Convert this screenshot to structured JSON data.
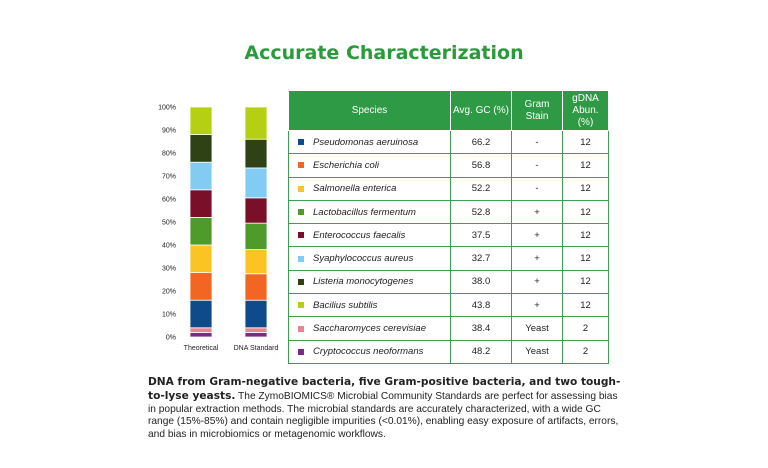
{
  "title": "Accurate Characterization",
  "chart_data": {
    "type": "bar",
    "stacked": true,
    "categories": [
      "Theoretical",
      "DNA Standard"
    ],
    "yticks": [
      "0%",
      "10%",
      "20%",
      "30%",
      "40%",
      "50%",
      "60%",
      "70%",
      "80%",
      "90%",
      "100%"
    ],
    "ylim": [
      0,
      100
    ],
    "series": [
      {
        "name": "Cryptococcus neoformans",
        "color": "#7b2c82",
        "values": [
          2,
          2
        ]
      },
      {
        "name": "Saccharomyces cerevisiae",
        "color": "#e8858e",
        "values": [
          2,
          2
        ]
      },
      {
        "name": "Pseudomonas aeruinosa",
        "color": "#0f4a8a",
        "values": [
          12,
          12
        ]
      },
      {
        "name": "Escherichia coli",
        "color": "#f26522",
        "values": [
          12,
          11.5
        ]
      },
      {
        "name": "Salmonella enterica",
        "color": "#fbc423",
        "values": [
          12,
          10.5
        ]
      },
      {
        "name": "Lactobacillus fermentum",
        "color": "#4e9a2b",
        "values": [
          12,
          11.5
        ]
      },
      {
        "name": "Enterococcus faecalis",
        "color": "#7a0f2a",
        "values": [
          12,
          11
        ]
      },
      {
        "name": "Syaphylococcus aureus",
        "color": "#82cbf2",
        "values": [
          12,
          13
        ]
      },
      {
        "name": "Listeria monocytogenes",
        "color": "#2f4216",
        "values": [
          12,
          12.5
        ]
      },
      {
        "name": "Bacilius subtilis",
        "color": "#b5d012",
        "values": [
          12,
          14
        ]
      }
    ]
  },
  "table": {
    "headers": [
      "Species",
      "Avg. GC (%)",
      "Gram Stain",
      "gDNA Abun. (%)"
    ],
    "rows": [
      {
        "species": "Pseudomonas aeruinosa",
        "color": "#0f4a8a",
        "gc": "66.2",
        "stain": "-",
        "abun": "12"
      },
      {
        "species": "Escherichia coli",
        "color": "#f26522",
        "gc": "56.8",
        "stain": "-",
        "abun": "12"
      },
      {
        "species": "Salmonella enterica",
        "color": "#fbc423",
        "gc": "52.2",
        "stain": "-",
        "abun": "12"
      },
      {
        "species": "Lactobacillus fermentum",
        "color": "#4e9a2b",
        "gc": "52.8",
        "stain": "+",
        "abun": "12"
      },
      {
        "species": "Enterococcus faecalis",
        "color": "#7a0f2a",
        "gc": "37.5",
        "stain": "+",
        "abun": "12"
      },
      {
        "species": "Syaphylococcus aureus",
        "color": "#82cbf2",
        "gc": "32.7",
        "stain": "+",
        "abun": "12"
      },
      {
        "species": "Listeria monocytogenes",
        "color": "#2f4216",
        "gc": "38.0",
        "stain": "+",
        "abun": "12"
      },
      {
        "species": "Bacilius subtilis",
        "color": "#b5d012",
        "gc": "43.8",
        "stain": "+",
        "abun": "12"
      },
      {
        "species": "Saccharomyces cerevisiae",
        "color": "#e8858e",
        "gc": "38.4",
        "stain": "Yeast",
        "abun": "2"
      },
      {
        "species": "Cryptococcus neoformans",
        "color": "#7b2c82",
        "gc": "48.2",
        "stain": "Yeast",
        "abun": "2"
      }
    ]
  },
  "description": {
    "bold": "DNA from Gram-negative bacteria, five Gram-positive bacteria, and two tough-to-lyse yeasts.",
    "text": " The ZymoBIOMICS® Microbial Community Standards are perfect for assessing bias in popular extraction methods. The microbial standards are accurately characterized, with a wide GC range (15%-85%) and contain negligible impurities (<0.01%), enabling easy exposure of artifacts, errors, and bias in microbiomics or metagenomic workflows."
  }
}
